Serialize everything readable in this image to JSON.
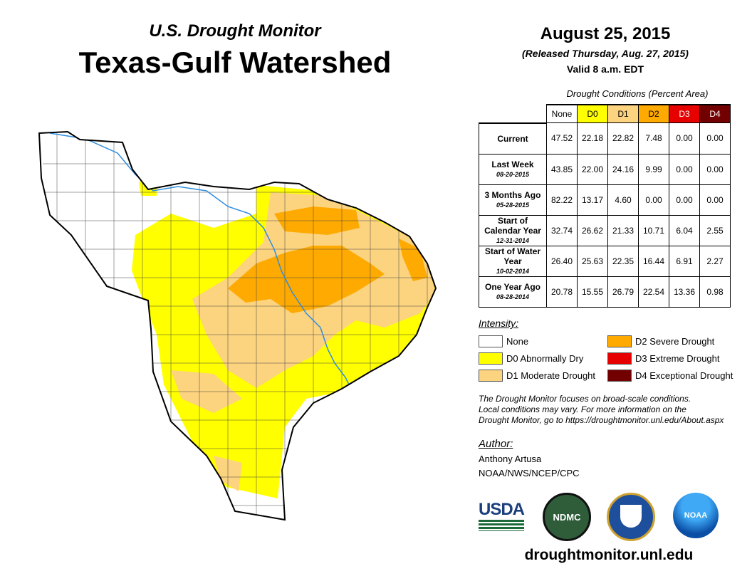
{
  "header": {
    "subtitle": "U.S. Drought Monitor",
    "title": "Texas-Gulf Watershed"
  },
  "date": {
    "date": "August 25, 2015",
    "released": "(Released Thursday, Aug. 27, 2015)",
    "valid": "Valid 8 a.m. EDT"
  },
  "table": {
    "caption": "Drought Conditions (Percent Area)",
    "columns": [
      "None",
      "D0",
      "D1",
      "D2",
      "D3",
      "D4"
    ],
    "rows": [
      {
        "label": "Current",
        "date": "",
        "values": [
          "47.52",
          "22.18",
          "22.82",
          "7.48",
          "0.00",
          "0.00"
        ]
      },
      {
        "label": "Last Week",
        "date": "08-20-2015",
        "values": [
          "43.85",
          "22.00",
          "24.16",
          "9.99",
          "0.00",
          "0.00"
        ]
      },
      {
        "label": "3 Months Ago",
        "date": "05-28-2015",
        "values": [
          "82.22",
          "13.17",
          "4.60",
          "0.00",
          "0.00",
          "0.00"
        ]
      },
      {
        "label": "Start of Calendar Year",
        "date": "12-31-2014",
        "values": [
          "32.74",
          "26.62",
          "21.33",
          "10.71",
          "6.04",
          "2.55"
        ]
      },
      {
        "label": "Start of Water Year",
        "date": "10-02-2014",
        "values": [
          "26.40",
          "25.63",
          "22.35",
          "16.44",
          "6.91",
          "2.27"
        ]
      },
      {
        "label": "One Year Ago",
        "date": "08-28-2014",
        "values": [
          "20.78",
          "15.55",
          "26.79",
          "22.54",
          "13.36",
          "0.98"
        ]
      }
    ]
  },
  "legend": {
    "title": "Intensity:",
    "items": [
      {
        "label": "None",
        "color": "#ffffff"
      },
      {
        "label": "D0 Abnormally Dry",
        "color": "#ffff00"
      },
      {
        "label": "D1 Moderate Drought",
        "color": "#fcd37f"
      },
      {
        "label": "D2 Severe Drought",
        "color": "#ffaa00"
      },
      {
        "label": "D3 Extreme Drought",
        "color": "#e60000"
      },
      {
        "label": "D4 Exceptional Drought",
        "color": "#730000"
      }
    ]
  },
  "note": [
    "The Drought Monitor focuses on broad-scale conditions.",
    "Local conditions may vary. For more information on the",
    "Drought Monitor, go to https://droughtmonitor.unl.edu/About.aspx"
  ],
  "author": {
    "title": "Author:",
    "name": "Anthony Artusa",
    "org": "NOAA/NWS/NCEP/CPC"
  },
  "logos": {
    "usda": "USDA",
    "ndmc": "NDMC",
    "noaa": "NOAA"
  },
  "footer_url": "droughtmonitor.unl.edu"
}
